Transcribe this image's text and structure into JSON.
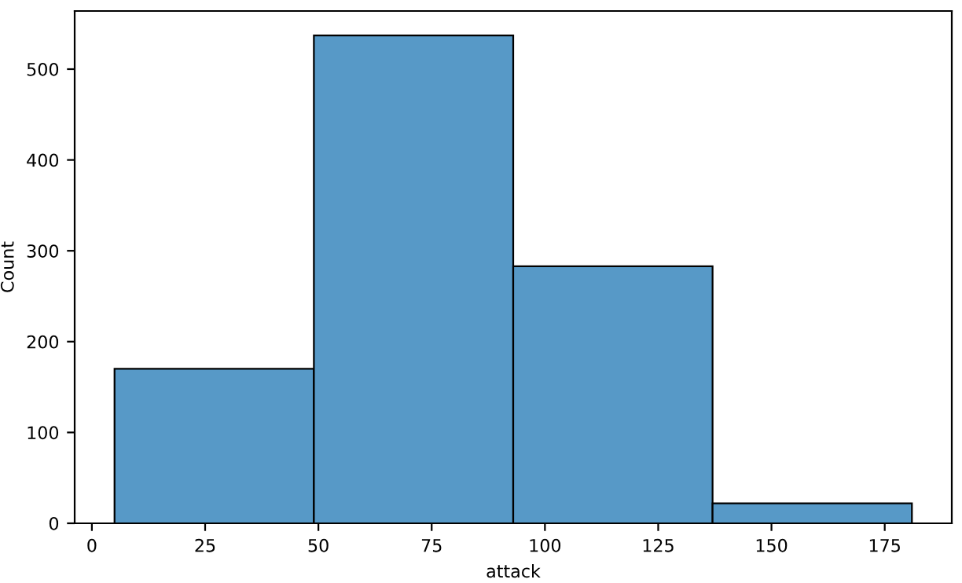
{
  "chart_data": {
    "type": "histogram",
    "xlabel": "attack",
    "ylabel": "Count",
    "bins": [
      5,
      49,
      93,
      137,
      181
    ],
    "values": [
      170,
      537,
      283,
      22
    ],
    "color": "#5799c7",
    "xlim": [
      -3.8,
      189.8
    ],
    "ylim": [
      0,
      564
    ],
    "xticks": [
      0,
      25,
      50,
      75,
      100,
      125,
      150,
      175
    ],
    "yticks": [
      0,
      100,
      200,
      300,
      400,
      500
    ],
    "grid": false
  }
}
